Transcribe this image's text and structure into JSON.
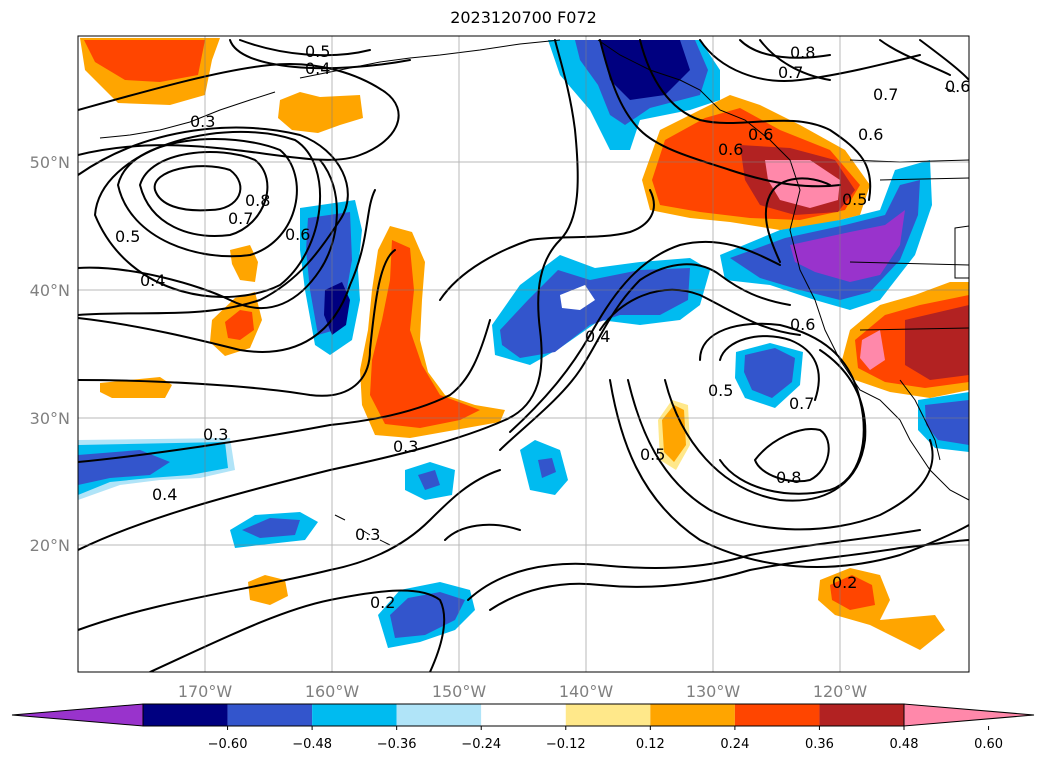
{
  "title": "2023120700 F072",
  "map": {
    "lat_labels": [
      "20°N",
      "30°N",
      "40°N",
      "50°N"
    ],
    "lon_labels": [
      "170°W",
      "160°W",
      "150°W",
      "140°W",
      "130°W",
      "120°W"
    ],
    "contour_labels": [
      "0.5",
      "0.4",
      "0.3",
      "0.8",
      "0.7",
      "0.6",
      "0.5",
      "0.4",
      "0.8",
      "0.7",
      "0.7",
      "0.6",
      "0.6",
      "0.6",
      "0.6",
      "0.5",
      "0.4",
      "0.5",
      "0.7",
      "0.6",
      "0.5",
      "0.8",
      "0.3",
      "0.3",
      "0.4",
      "0.3",
      "0.2",
      "0.2"
    ]
  },
  "colorbar": {
    "ticks": [
      "−0.60",
      "−0.48",
      "−0.36",
      "−0.24",
      "−0.12",
      "0.12",
      "0.24",
      "0.36",
      "0.48",
      "0.60"
    ],
    "colors": [
      "#9933cc",
      "#000080",
      "#3355cc",
      "#00bbf0",
      "#b0e4f8",
      "#ffffff",
      "#ffe88a",
      "#ffa500",
      "#ff4500",
      "#b22222",
      "#ff88aa"
    ]
  }
}
